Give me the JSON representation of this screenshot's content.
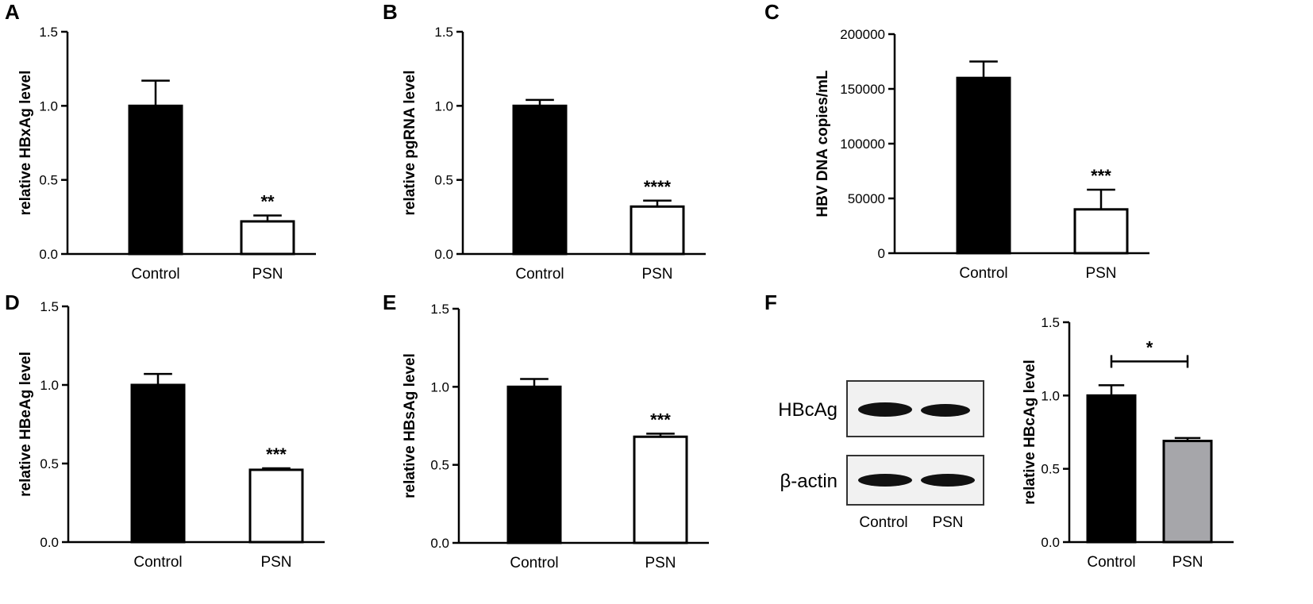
{
  "chart_data": [
    {
      "panel": "A",
      "type": "bar",
      "categories": [
        "Control",
        "PSN"
      ],
      "values": [
        1.0,
        0.22
      ],
      "errors": [
        0.17,
        0.04
      ],
      "fills": [
        "#000000",
        "#ffffff"
      ],
      "significance": [
        "",
        "**"
      ],
      "ylabel": "relative HBxAg level",
      "ylim": [
        0,
        1.5
      ],
      "yticks": [
        "0.0",
        "0.5",
        "1.0",
        "1.5"
      ]
    },
    {
      "panel": "B",
      "type": "bar",
      "categories": [
        "Control",
        "PSN"
      ],
      "values": [
        1.0,
        0.32
      ],
      "errors": [
        0.04,
        0.04
      ],
      "fills": [
        "#000000",
        "#ffffff"
      ],
      "significance": [
        "",
        "****"
      ],
      "ylabel": "relative pgRNA level",
      "ylim": [
        0,
        1.5
      ],
      "yticks": [
        "0.0",
        "0.5",
        "1.0",
        "1.5"
      ]
    },
    {
      "panel": "C",
      "type": "bar",
      "categories": [
        "Control",
        "PSN"
      ],
      "values": [
        160000,
        40000
      ],
      "errors": [
        15000,
        18000
      ],
      "fills": [
        "#000000",
        "#ffffff"
      ],
      "significance": [
        "",
        "***"
      ],
      "ylabel": "HBV DNA copies/mL",
      "ylim": [
        0,
        200000
      ],
      "yticks": [
        "0",
        "50000",
        "100000",
        "150000",
        "200000"
      ]
    },
    {
      "panel": "D",
      "type": "bar",
      "categories": [
        "Control",
        "PSN"
      ],
      "values": [
        1.0,
        0.46
      ],
      "errors": [
        0.07,
        0.01
      ],
      "fills": [
        "#000000",
        "#ffffff"
      ],
      "significance": [
        "",
        "***"
      ],
      "ylabel": "relative HBeAg level",
      "ylim": [
        0,
        1.5
      ],
      "yticks": [
        "0.0",
        "0.5",
        "1.0",
        "1.5"
      ]
    },
    {
      "panel": "E",
      "type": "bar",
      "categories": [
        "Control",
        "PSN"
      ],
      "values": [
        1.0,
        0.68
      ],
      "errors": [
        0.05,
        0.02
      ],
      "fills": [
        "#000000",
        "#ffffff"
      ],
      "significance": [
        "",
        "***"
      ],
      "ylabel": "relative HBsAg level",
      "ylim": [
        0,
        1.5
      ],
      "yticks": [
        "0.0",
        "0.5",
        "1.0",
        "1.5"
      ]
    },
    {
      "panel": "F",
      "type": "bar",
      "categories": [
        "Control",
        "PSN"
      ],
      "values": [
        1.0,
        0.69
      ],
      "errors": [
        0.07,
        0.02
      ],
      "fills": [
        "#000000",
        "#a6a6aa"
      ],
      "significance_bracket": "*",
      "ylabel": "relative HBcAg level",
      "ylim": [
        0,
        1.5
      ],
      "yticks": [
        "0.0",
        "0.5",
        "1.0",
        "1.5"
      ]
    }
  ],
  "blot": {
    "rows": [
      "HBcAg",
      "β-actin"
    ],
    "lanes": [
      "Control",
      "PSN"
    ],
    "band_color": "#111111",
    "membrane_color": "#f1f1f1"
  }
}
